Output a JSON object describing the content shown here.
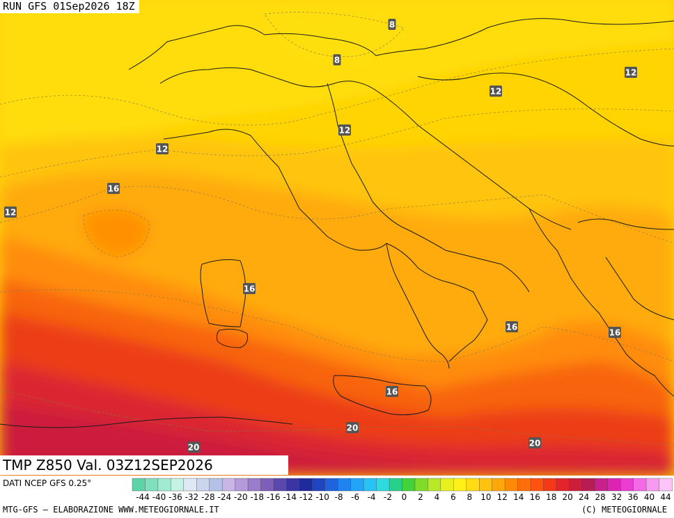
{
  "header": {
    "run_label": "RUN GFS 01Sep2026 18Z"
  },
  "title": {
    "text": "TMP Z850 Val. 03Z12SEP2026"
  },
  "source": {
    "text": "DATI NCEP GFS 0.25°"
  },
  "footer": {
    "left": "MTG-GFS – ELABORAZIONE WWW.METEOGIORNALE.IT",
    "right": "(C) METEOGIORNALE"
  },
  "legend": {
    "tick_labels": [
      "-44",
      "-40",
      "-36",
      "-32",
      "-28",
      "-24",
      "-20",
      "-18",
      "-16",
      "-14",
      "-12",
      "-10",
      "-8",
      "-6",
      "-4",
      "-2",
      "0",
      "2",
      "4",
      "6",
      "8",
      "10",
      "12",
      "14",
      "16",
      "18",
      "20",
      "24",
      "28",
      "32",
      "36",
      "40",
      "44"
    ],
    "colors": [
      "#5fd3a8",
      "#7fe0bd",
      "#a3ead2",
      "#c6f2e4",
      "#dfe8f4",
      "#c9d6ee",
      "#b3c2e6",
      "#c9b6e4",
      "#b49ad8",
      "#9a7ccb",
      "#7d5fbb",
      "#5b48ad",
      "#3b35a3",
      "#1f2a9c",
      "#1f45c0",
      "#1f63de",
      "#2083f0",
      "#23a4f7",
      "#27c3f4",
      "#2fd9e0",
      "#28d08a",
      "#43d23b",
      "#7fdc2a",
      "#b9e826",
      "#e8f020",
      "#fff21a",
      "#ffdc14",
      "#ffc20e",
      "#ffa60a",
      "#ff8a08",
      "#ff6e0a",
      "#ff520e",
      "#f43818",
      "#e3242a",
      "#cc1f3c",
      "#b81c52",
      "#c8208c",
      "#dc24b2",
      "#ea3ed2",
      "#f46ae6",
      "#f89af0",
      "#fcc4f8"
    ]
  },
  "map": {
    "isotherm_labels": [
      {
        "value": "8"
      },
      {
        "value": "8"
      },
      {
        "value": "12"
      },
      {
        "value": "12"
      },
      {
        "value": "12"
      },
      {
        "value": "12"
      },
      {
        "value": "16"
      },
      {
        "value": "12"
      },
      {
        "value": "16"
      },
      {
        "value": "16"
      },
      {
        "value": "16"
      },
      {
        "value": "16"
      },
      {
        "value": "20"
      },
      {
        "value": "20"
      },
      {
        "value": "20"
      }
    ]
  }
}
